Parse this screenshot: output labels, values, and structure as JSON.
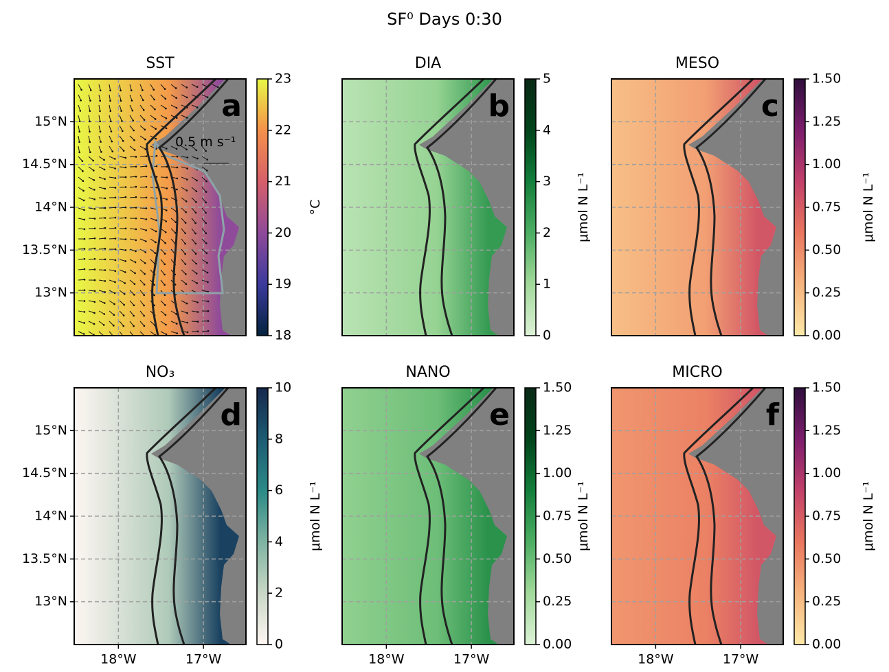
{
  "title": "SF⁰ Days 0:30",
  "chart_data": [
    {
      "type": "map",
      "title": "SST",
      "label": "a",
      "annotation": "0.5 m s⁻¹",
      "xlim": [
        -18.52,
        -16.5
      ],
      "ylim": [
        12.5,
        15.5
      ],
      "grid": true,
      "xticks": [
        -18,
        -17
      ],
      "yticks": [
        {
          "value": 13,
          "label": "13°N"
        },
        {
          "value": 13.5,
          "label": "13.5°N"
        },
        {
          "value": 14,
          "label": "14°N"
        },
        {
          "value": 14.5,
          "label": "14.5°N"
        },
        {
          "value": 15,
          "label": "15°N"
        }
      ],
      "colorbar": {
        "label": "°C",
        "lim": [
          18,
          23
        ],
        "ticks": [
          18,
          19,
          20,
          21,
          22,
          23
        ],
        "colormap": [
          "#04233e",
          "#3b3a9d",
          "#8f4a9a",
          "#d65f6a",
          "#f5914a",
          "#e8f845"
        ]
      }
    },
    {
      "type": "map",
      "title": "DIA",
      "label": "b",
      "xlim": [
        -18.52,
        -16.5
      ],
      "ylim": [
        12.5,
        15.5
      ],
      "grid": true,
      "xticks": [
        -18,
        -17
      ],
      "yticks": [
        13,
        13.5,
        14,
        14.5,
        15
      ],
      "colorbar": {
        "label": "μmol N L⁻¹",
        "lim": [
          0,
          5
        ],
        "ticks": [
          0,
          1,
          2,
          3,
          4,
          5
        ],
        "colormap": [
          "#dcf2d6",
          "#a2d99b",
          "#4cae62",
          "#137f3c",
          "#00441b",
          "#0a2a17"
        ]
      }
    },
    {
      "type": "map",
      "title": "MESO",
      "label": "c",
      "xlim": [
        -18.52,
        -16.5
      ],
      "ylim": [
        12.5,
        15.5
      ],
      "grid": true,
      "xticks": [
        -18,
        -17
      ],
      "yticks": [
        13,
        13.5,
        14,
        14.5,
        15
      ],
      "colorbar": {
        "label": "μmol N L⁻¹",
        "lim": [
          0,
          1.5
        ],
        "ticks": [
          {
            "value": 0,
            "label": "0.00"
          },
          {
            "value": 0.25,
            "label": "0.25"
          },
          {
            "value": 0.5,
            "label": "0.50"
          },
          {
            "value": 0.75,
            "label": "0.75"
          },
          {
            "value": 1,
            "label": "1.00"
          },
          {
            "value": 1.25,
            "label": "1.25"
          },
          {
            "value": 1.5,
            "label": "1.50"
          }
        ],
        "colormap": [
          "#fde9a8",
          "#f6b47e",
          "#e9775f",
          "#c2416a",
          "#7c1d6c",
          "#2f0f3d"
        ]
      }
    },
    {
      "type": "map",
      "title": "NO₃",
      "label": "d",
      "xlim": [
        -18.52,
        -16.5
      ],
      "ylim": [
        12.5,
        15.5
      ],
      "grid": true,
      "xticks": [
        {
          "value": -18,
          "label": "18°W"
        },
        {
          "value": -17,
          "label": "17°W"
        }
      ],
      "yticks": [
        {
          "value": 13,
          "label": "13°N"
        },
        {
          "value": 13.5,
          "label": "13.5°N"
        },
        {
          "value": 14,
          "label": "14°N"
        },
        {
          "value": 14.5,
          "label": "14.5°N"
        },
        {
          "value": 15,
          "label": "15°N"
        }
      ],
      "colorbar": {
        "label": "μmol N L⁻¹",
        "lim": [
          0,
          10
        ],
        "ticks": [
          0,
          2,
          4,
          6,
          8,
          10
        ],
        "colormap": [
          "#fef6f2",
          "#c9d7c6",
          "#7fb3a2",
          "#2a8a86",
          "#1d5b73",
          "#16284d"
        ]
      }
    },
    {
      "type": "map",
      "title": "NANO",
      "label": "e",
      "xlim": [
        -18.52,
        -16.5
      ],
      "ylim": [
        12.5,
        15.5
      ],
      "grid": true,
      "xticks": [
        {
          "value": -18,
          "label": "18°W"
        },
        {
          "value": -17,
          "label": "17°W"
        }
      ],
      "yticks": [
        13,
        13.5,
        14,
        14.5,
        15
      ],
      "colorbar": {
        "label": "μmol N L⁻¹",
        "lim": [
          0,
          1.5
        ],
        "ticks": [
          {
            "value": 0,
            "label": "0.00"
          },
          {
            "value": 0.25,
            "label": "0.25"
          },
          {
            "value": 0.5,
            "label": "0.50"
          },
          {
            "value": 0.75,
            "label": "0.75"
          },
          {
            "value": 1,
            "label": "1.00"
          },
          {
            "value": 1.25,
            "label": "1.25"
          },
          {
            "value": 1.5,
            "label": "1.50"
          }
        ],
        "colormap": [
          "#dcf2d6",
          "#a2d99b",
          "#4cae62",
          "#137f3c",
          "#00441b",
          "#0a2a17"
        ]
      }
    },
    {
      "type": "map",
      "title": "MICRO",
      "label": "f",
      "xlim": [
        -18.52,
        -16.5
      ],
      "ylim": [
        12.5,
        15.5
      ],
      "grid": true,
      "xticks": [
        {
          "value": -18,
          "label": "18°W"
        },
        {
          "value": -17,
          "label": "17°W"
        }
      ],
      "yticks": [
        13,
        13.5,
        14,
        14.5,
        15
      ],
      "colorbar": {
        "label": "μmol N L⁻¹",
        "lim": [
          0,
          1.5
        ],
        "ticks": [
          {
            "value": 0,
            "label": "0.00"
          },
          {
            "value": 0.25,
            "label": "0.25"
          },
          {
            "value": 0.5,
            "label": "0.50"
          },
          {
            "value": 0.75,
            "label": "0.75"
          },
          {
            "value": 1,
            "label": "1.00"
          },
          {
            "value": 1.25,
            "label": "1.25"
          },
          {
            "value": 1.5,
            "label": "1.50"
          }
        ],
        "colormap": [
          "#fde9a8",
          "#f6b47e",
          "#e9775f",
          "#c2416a",
          "#7c1d6c",
          "#2f0f3d"
        ]
      }
    }
  ]
}
